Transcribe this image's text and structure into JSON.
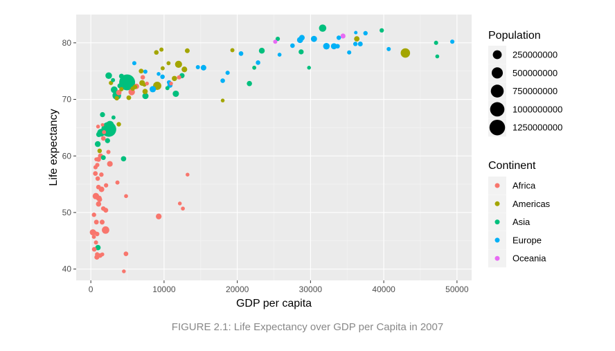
{
  "caption": "FIGURE 2.1: Life Expectancy over GDP per Capita in 2007",
  "chart_data": {
    "type": "scatter",
    "xlabel": "GDP per capita",
    "ylabel": "Life expectancy",
    "xlim": [
      -2000,
      52000
    ],
    "ylim": [
      38,
      85
    ],
    "xticks": [
      0,
      10000,
      20000,
      30000,
      40000,
      50000
    ],
    "yticks": [
      40,
      50,
      60,
      70,
      80
    ],
    "grid": true,
    "legend_position": "right",
    "size_legend": {
      "title": "Population",
      "entries": [
        {
          "label": "250000000",
          "value": 250000000
        },
        {
          "label": "500000000",
          "value": 500000000
        },
        {
          "label": "750000000",
          "value": 750000000
        },
        {
          "label": "1000000000",
          "value": 1000000000
        },
        {
          "label": "1250000000",
          "value": 1250000000
        }
      ]
    },
    "color_legend": {
      "title": "Continent",
      "entries": [
        {
          "label": "Africa",
          "color": "#F8766D"
        },
        {
          "label": "Americas",
          "color": "#A3A500"
        },
        {
          "label": "Asia",
          "color": "#00BF7D"
        },
        {
          "label": "Europe",
          "color": "#00B0F6"
        },
        {
          "label": "Oceania",
          "color": "#E76BF3"
        }
      ]
    },
    "series": [
      {
        "name": "Africa",
        "color": "#F8766D",
        "points": [
          [
            6223,
            72.3,
            33
          ],
          [
            4797,
            42.7,
            12
          ],
          [
            1441,
            56.7,
            8
          ],
          [
            12570,
            50.7,
            2
          ],
          [
            1217,
            52.3,
            14
          ],
          [
            430,
            49.6,
            8
          ],
          [
            2042,
            50.4,
            17
          ],
          [
            706,
            44.7,
            4
          ],
          [
            1704,
            50.7,
            10
          ],
          [
            986,
            65.2,
            1
          ],
          [
            278,
            46.5,
            64
          ],
          [
            3633,
            55.3,
            4
          ],
          [
            1545,
            48.3,
            18
          ],
          [
            2082,
            54.8,
            6
          ],
          [
            5581,
            71.3,
            80
          ],
          [
            12154,
            51.6,
            1
          ],
          [
            641,
            58.0,
            5
          ],
          [
            690,
            52.9,
            77
          ],
          [
            13206,
            56.7,
            1
          ],
          [
            753,
            59.4,
            2
          ],
          [
            1328,
            60.0,
            23
          ],
          [
            943,
            56.0,
            10
          ],
          [
            579,
            46.4,
            1
          ],
          [
            1463,
            54.1,
            36
          ],
          [
            1569,
            42.6,
            2
          ],
          [
            415,
            45.7,
            3
          ],
          [
            12057,
            73.9,
            6
          ],
          [
            1045,
            59.4,
            19
          ],
          [
            759,
            48.3,
            14
          ],
          [
            1042,
            54.5,
            12
          ],
          [
            1803,
            64.2,
            3
          ],
          [
            10957,
            72.8,
            1
          ],
          [
            3820,
            71.2,
            33
          ],
          [
            824,
            42.1,
            20
          ],
          [
            4811,
            52.9,
            2
          ],
          [
            620,
            56.9,
            13
          ],
          [
            2014,
            46.9,
            135
          ],
          [
            7670,
            72.8,
            1
          ],
          [
            863,
            46.2,
            9
          ],
          [
            1598,
            65.5,
            0
          ],
          [
            1712,
            63.1,
            12
          ],
          [
            862,
            42.6,
            6
          ],
          [
            9270,
            49.3,
            44
          ],
          [
            2602,
            58.6,
            42
          ],
          [
            4513,
            39.6,
            1
          ],
          [
            1107,
            52.5,
            38
          ],
          [
            883,
            58.4,
            5
          ],
          [
            7093,
            73.9,
            10
          ],
          [
            1056,
            51.5,
            29
          ],
          [
            1271,
            42.4,
            12
          ],
          [
            470,
            43.5,
            12
          ],
          [
            2400,
            60.7,
            5
          ]
        ]
      },
      {
        "name": "Americas",
        "color": "#A3A500",
        "points": [
          [
            12779,
            75.3,
            40
          ],
          [
            3822,
            65.6,
            9
          ],
          [
            9066,
            72.4,
            190
          ],
          [
            36319,
            80.7,
            33
          ],
          [
            13172,
            78.6,
            16
          ],
          [
            7007,
            72.9,
            44
          ],
          [
            9645,
            78.8,
            4
          ],
          [
            8948,
            78.3,
            11
          ],
          [
            6025,
            72.2,
            9
          ],
          [
            6873,
            75.0,
            14
          ],
          [
            5728,
            71.9,
            7
          ],
          [
            5186,
            70.3,
            13
          ],
          [
            1202,
            60.9,
            9
          ],
          [
            3548,
            70.2,
            7
          ],
          [
            7321,
            72.6,
            3
          ],
          [
            11978,
            76.2,
            109
          ],
          [
            2749,
            72.9,
            6
          ],
          [
            9809,
            75.5,
            3
          ],
          [
            4173,
            71.8,
            6
          ],
          [
            7409,
            71.4,
            29
          ],
          [
            19329,
            78.7,
            4
          ],
          [
            18009,
            69.8,
            1
          ],
          [
            42952,
            78.2,
            301
          ],
          [
            10611,
            76.4,
            3
          ],
          [
            11416,
            73.7,
            26
          ]
        ]
      },
      {
        "name": "Asia",
        "color": "#00BF7D",
        "points": [
          [
            975,
            43.8,
            32
          ],
          [
            29796,
            75.6,
            1
          ],
          [
            1391,
            64.1,
            150
          ],
          [
            1714,
            59.7,
            15
          ],
          [
            4959,
            73.0,
            1319
          ],
          [
            39725,
            82.2,
            7
          ],
          [
            2452,
            64.7,
            1110
          ],
          [
            3541,
            70.7,
            224
          ],
          [
            11606,
            71.0,
            69
          ],
          [
            4471,
            59.5,
            28
          ],
          [
            25523,
            80.7,
            6
          ],
          [
            31656,
            82.6,
            127
          ],
          [
            4519,
            72.5,
            6
          ],
          [
            1593,
            67.3,
            23
          ],
          [
            23348,
            78.6,
            49
          ],
          [
            47307,
            77.6,
            2
          ],
          [
            10461,
            72.0,
            4
          ],
          [
            12452,
            74.2,
            24
          ],
          [
            3096,
            66.8,
            3
          ],
          [
            944,
            62.1,
            47
          ],
          [
            1091,
            63.8,
            29
          ],
          [
            22316,
            75.6,
            3
          ],
          [
            2606,
            65.5,
            169
          ],
          [
            3190,
            71.7,
            91
          ],
          [
            21655,
            72.8,
            27
          ],
          [
            47143,
            80.0,
            5
          ],
          [
            3970,
            72.4,
            20
          ],
          [
            4185,
            74.1,
            19
          ],
          [
            28718,
            78.4,
            23
          ],
          [
            7458,
            70.6,
            65
          ],
          [
            2442,
            74.2,
            85
          ],
          [
            3025,
            73.4,
            4
          ],
          [
            2281,
            62.7,
            22
          ]
        ]
      },
      {
        "name": "Europe",
        "color": "#00B0F6",
        "points": [
          [
            5937,
            76.4,
            4
          ],
          [
            36126,
            79.8,
            8
          ],
          [
            33693,
            79.4,
            10
          ],
          [
            7446,
            74.9,
            5
          ],
          [
            10681,
            73.0,
            7
          ],
          [
            14619,
            75.7,
            4
          ],
          [
            22833,
            76.5,
            10
          ],
          [
            35278,
            78.3,
            5
          ],
          [
            33207,
            79.3,
            5
          ],
          [
            30470,
            80.7,
            61
          ],
          [
            32170,
            79.4,
            82
          ],
          [
            27538,
            79.5,
            11
          ],
          [
            18009,
            73.3,
            10
          ],
          [
            36181,
            81.8,
            0
          ],
          [
            40676,
            78.9,
            4
          ],
          [
            28570,
            80.5,
            58
          ],
          [
            9254,
            74.5,
            1
          ],
          [
            36798,
            79.8,
            16
          ],
          [
            49357,
            80.2,
            5
          ],
          [
            15390,
            75.6,
            38
          ],
          [
            20510,
            78.1,
            11
          ],
          [
            10808,
            72.5,
            22
          ],
          [
            9787,
            74.0,
            10
          ],
          [
            18678,
            74.7,
            5
          ],
          [
            25768,
            77.9,
            2
          ],
          [
            28821,
            80.9,
            40
          ],
          [
            33860,
            80.9,
            9
          ],
          [
            37506,
            81.7,
            8
          ],
          [
            8458,
            71.8,
            71
          ],
          [
            33203,
            79.4,
            61
          ]
        ]
      },
      {
        "name": "Oceania",
        "color": "#E76BF3",
        "points": [
          [
            34435,
            81.2,
            20
          ],
          [
            25185,
            80.2,
            4
          ]
        ]
      }
    ]
  }
}
